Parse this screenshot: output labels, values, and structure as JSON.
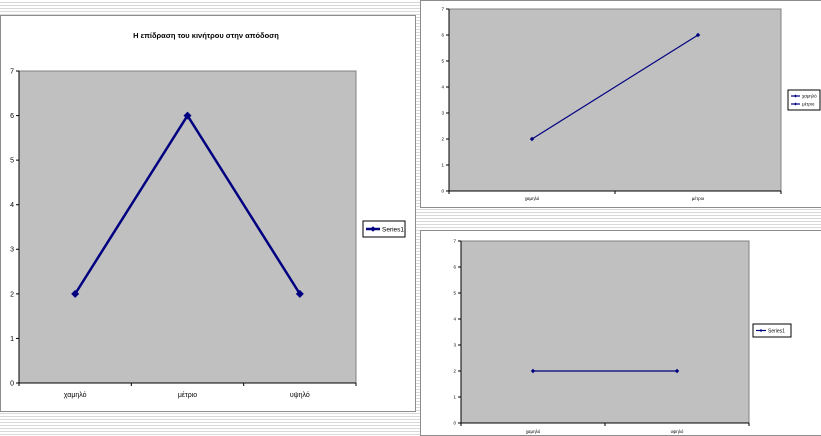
{
  "colors": {
    "plot_bg": "#c0c0c0",
    "line": "#000080",
    "frame": "#8c8c8c"
  },
  "chart_data": [
    {
      "type": "line",
      "title": "Η επίδραση του κινήτρου στην απόδοση",
      "categories": [
        "χαμηλό",
        "μέτριο",
        "υψηλό"
      ],
      "y_ticks": [
        "0",
        "1",
        "2",
        "3",
        "4",
        "5",
        "6",
        "7"
      ],
      "ylim": [
        0,
        7
      ],
      "series": [
        {
          "name": "Series1",
          "values": [
            2,
            6,
            2
          ]
        }
      ],
      "legend": "right",
      "grid": false,
      "marker": "diamond"
    },
    {
      "type": "line",
      "title": "",
      "categories": [
        "χαμηλό",
        "μέτριο"
      ],
      "y_ticks": [
        "0",
        "1",
        "2",
        "3",
        "4",
        "5",
        "6",
        "7"
      ],
      "ylim": [
        0,
        7
      ],
      "series": [
        {
          "name": "χαμηλό",
          "values": [
            2,
            6
          ]
        }
      ],
      "legend_entries": [
        "χαμηλό",
        "μέτριο"
      ],
      "legend": "right",
      "grid": false,
      "marker": "diamond"
    },
    {
      "type": "line",
      "title": "",
      "categories": [
        "χαμηλό",
        "υψηλό"
      ],
      "y_ticks": [
        "0",
        "1",
        "2",
        "3",
        "4",
        "5",
        "6",
        "7"
      ],
      "ylim": [
        0,
        7
      ],
      "series": [
        {
          "name": "Series1",
          "values": [
            2,
            2
          ]
        }
      ],
      "legend": "right",
      "grid": false,
      "marker": "diamond"
    }
  ]
}
